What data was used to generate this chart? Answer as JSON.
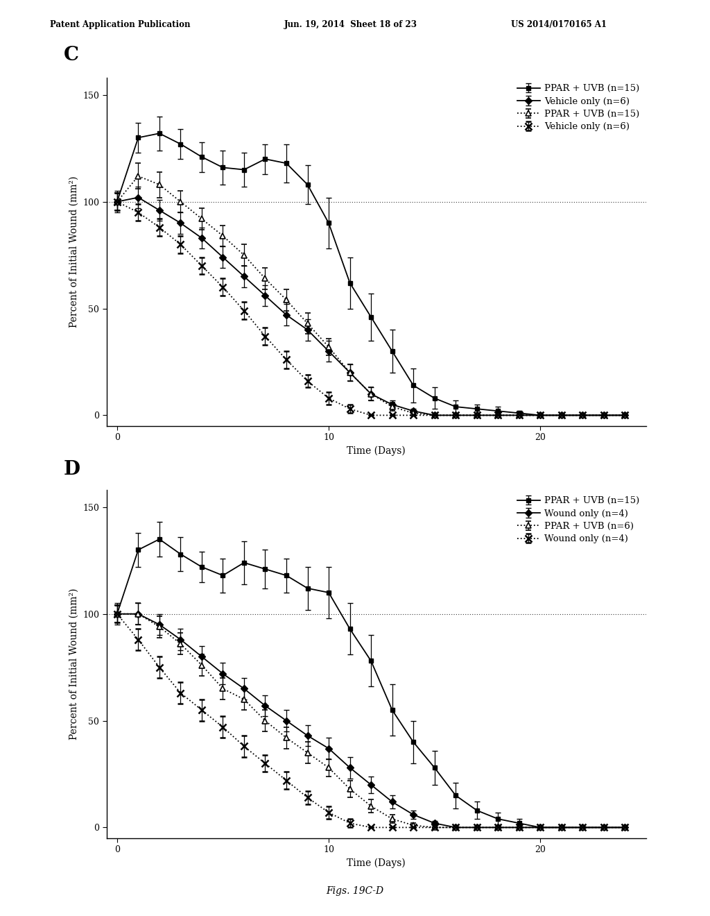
{
  "header_left": "Patent Application Publication",
  "header_mid": "Jun. 19, 2014  Sheet 18 of 23",
  "header_right": "US 2014/0170165 A1",
  "footer": "Figs. 19C-D",
  "panel_C": {
    "label": "C",
    "ylabel": "Percent of Initial Wound (mm²)",
    "xlabel": "Time (Days)",
    "ylim": [
      -5,
      158
    ],
    "xlim": [
      -0.5,
      25
    ],
    "yticks": [
      0,
      50,
      100,
      150
    ],
    "xticks": [
      0,
      10,
      20
    ],
    "hline_y": 100,
    "series": [
      {
        "label": "PPAR + UVB (n=15)",
        "linestyle": "-",
        "marker": "s",
        "x": [
          0,
          1,
          2,
          3,
          4,
          5,
          6,
          7,
          8,
          9,
          10,
          11,
          12,
          13,
          14,
          15,
          16,
          17,
          18,
          19,
          20,
          21,
          22,
          23,
          24
        ],
        "y": [
          100,
          130,
          132,
          127,
          121,
          116,
          115,
          120,
          118,
          108,
          90,
          62,
          46,
          30,
          14,
          8,
          4,
          3,
          2,
          1,
          0,
          0,
          0,
          0,
          0
        ],
        "yerr": [
          5,
          7,
          8,
          7,
          7,
          8,
          8,
          7,
          9,
          9,
          12,
          12,
          11,
          10,
          8,
          5,
          3,
          2,
          2,
          1,
          1,
          0,
          0,
          0,
          0
        ]
      },
      {
        "label": "Vehicle only (n=6)",
        "linestyle": "-",
        "marker": "D",
        "x": [
          0,
          1,
          2,
          3,
          4,
          5,
          6,
          7,
          8,
          9,
          10,
          11,
          12,
          13,
          14,
          15,
          16,
          17,
          18,
          19,
          20,
          21,
          22,
          23,
          24
        ],
        "y": [
          100,
          102,
          96,
          90,
          83,
          74,
          65,
          56,
          47,
          40,
          30,
          20,
          10,
          5,
          2,
          0,
          0,
          0,
          0,
          0,
          0,
          0,
          0,
          0,
          0
        ],
        "yerr": [
          4,
          5,
          5,
          5,
          5,
          5,
          5,
          5,
          5,
          5,
          5,
          4,
          3,
          2,
          1,
          0,
          0,
          0,
          0,
          0,
          0,
          0,
          0,
          0,
          0
        ]
      },
      {
        "label": "PPAR + UVB (n=15)",
        "linestyle": ":",
        "marker": "^",
        "x": [
          0,
          1,
          2,
          3,
          4,
          5,
          6,
          7,
          8,
          9,
          10,
          11,
          12,
          13,
          14,
          15,
          16,
          17,
          18,
          19,
          20,
          21,
          22,
          23,
          24
        ],
        "y": [
          100,
          112,
          108,
          100,
          92,
          84,
          75,
          64,
          54,
          43,
          32,
          20,
          10,
          4,
          1,
          0,
          0,
          0,
          0,
          0,
          0,
          0,
          0,
          0,
          0
        ],
        "yerr": [
          4,
          6,
          6,
          5,
          5,
          5,
          5,
          5,
          5,
          5,
          4,
          4,
          3,
          2,
          1,
          0,
          0,
          0,
          0,
          0,
          0,
          0,
          0,
          0,
          0
        ]
      },
      {
        "label": "Vehicle only (n=6)",
        "linestyle": ":",
        "marker": "x",
        "x": [
          0,
          1,
          2,
          3,
          4,
          5,
          6,
          7,
          8,
          9,
          10,
          11,
          12,
          13,
          14,
          15,
          16,
          17,
          18,
          19,
          20,
          21,
          22,
          23,
          24
        ],
        "y": [
          100,
          95,
          88,
          80,
          70,
          60,
          49,
          37,
          26,
          16,
          8,
          3,
          0,
          0,
          0,
          0,
          0,
          0,
          0,
          0,
          0,
          0,
          0,
          0,
          0
        ],
        "yerr": [
          4,
          4,
          4,
          4,
          4,
          4,
          4,
          4,
          4,
          3,
          3,
          2,
          0,
          0,
          0,
          0,
          0,
          0,
          0,
          0,
          0,
          0,
          0,
          0,
          0
        ]
      }
    ]
  },
  "panel_D": {
    "label": "D",
    "ylabel": "Percent of Initial Wound (mm²)",
    "xlabel": "Time (Days)",
    "ylim": [
      -5,
      158
    ],
    "xlim": [
      -0.5,
      25
    ],
    "yticks": [
      0,
      50,
      100,
      150
    ],
    "xticks": [
      0,
      10,
      20
    ],
    "hline_y": 100,
    "series": [
      {
        "label": "PPAR + UVB (n=15)",
        "linestyle": "-",
        "marker": "s",
        "x": [
          0,
          1,
          2,
          3,
          4,
          5,
          6,
          7,
          8,
          9,
          10,
          11,
          12,
          13,
          14,
          15,
          16,
          17,
          18,
          19,
          20,
          21,
          22,
          23,
          24
        ],
        "y": [
          100,
          130,
          135,
          128,
          122,
          118,
          124,
          121,
          118,
          112,
          110,
          93,
          78,
          55,
          40,
          28,
          15,
          8,
          4,
          2,
          0,
          0,
          0,
          0,
          0
        ],
        "yerr": [
          5,
          8,
          8,
          8,
          7,
          8,
          10,
          9,
          8,
          10,
          12,
          12,
          12,
          12,
          10,
          8,
          6,
          4,
          3,
          2,
          1,
          0,
          0,
          0,
          0
        ]
      },
      {
        "label": "Wound only (n=4)",
        "linestyle": "-",
        "marker": "D",
        "x": [
          0,
          1,
          2,
          3,
          4,
          5,
          6,
          7,
          8,
          9,
          10,
          11,
          12,
          13,
          14,
          15,
          16,
          17,
          18,
          19,
          20,
          21,
          22,
          23,
          24
        ],
        "y": [
          100,
          100,
          95,
          88,
          80,
          72,
          65,
          57,
          50,
          43,
          37,
          28,
          20,
          12,
          6,
          2,
          0,
          0,
          0,
          0,
          0,
          0,
          0,
          0,
          0
        ],
        "yerr": [
          4,
          5,
          5,
          5,
          5,
          5,
          5,
          5,
          5,
          5,
          5,
          5,
          4,
          3,
          2,
          1,
          0,
          0,
          0,
          0,
          0,
          0,
          0,
          0,
          0
        ]
      },
      {
        "label": "PPAR + UVB (n=6)",
        "linestyle": ":",
        "marker": "^",
        "x": [
          0,
          1,
          2,
          3,
          4,
          5,
          6,
          7,
          8,
          9,
          10,
          11,
          12,
          13,
          14,
          15,
          16,
          17,
          18,
          19,
          20,
          21,
          22,
          23,
          24
        ],
        "y": [
          100,
          100,
          94,
          86,
          76,
          65,
          60,
          50,
          42,
          35,
          28,
          18,
          10,
          4,
          1,
          0,
          0,
          0,
          0,
          0,
          0,
          0,
          0,
          0,
          0
        ],
        "yerr": [
          4,
          5,
          5,
          5,
          5,
          5,
          5,
          5,
          5,
          5,
          4,
          4,
          3,
          2,
          1,
          0,
          0,
          0,
          0,
          0,
          0,
          0,
          0,
          0,
          0
        ]
      },
      {
        "label": "Wound only (n=4)",
        "linestyle": ":",
        "marker": "x",
        "x": [
          0,
          1,
          2,
          3,
          4,
          5,
          6,
          7,
          8,
          9,
          10,
          11,
          12,
          13,
          14,
          15,
          16,
          17,
          18,
          19,
          20,
          21,
          22,
          23,
          24
        ],
        "y": [
          100,
          88,
          75,
          63,
          55,
          47,
          38,
          30,
          22,
          14,
          7,
          2,
          0,
          0,
          0,
          0,
          0,
          0,
          0,
          0,
          0,
          0,
          0,
          0,
          0
        ],
        "yerr": [
          4,
          5,
          5,
          5,
          5,
          5,
          5,
          4,
          4,
          3,
          3,
          2,
          0,
          0,
          0,
          0,
          0,
          0,
          0,
          0,
          0,
          0,
          0,
          0,
          0
        ]
      }
    ]
  }
}
